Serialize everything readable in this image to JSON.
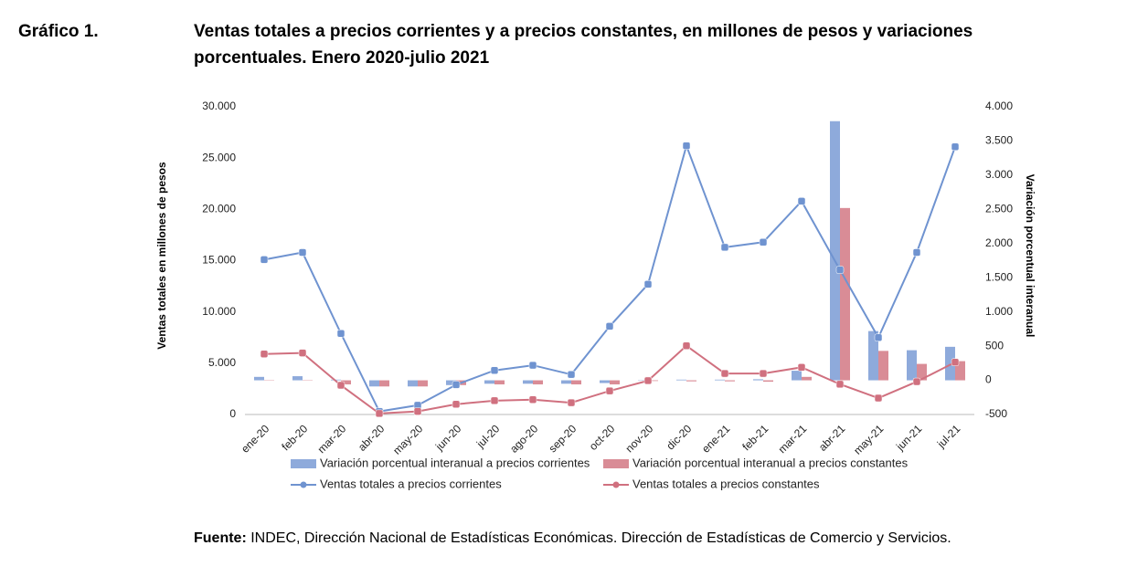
{
  "chart_data": {
    "type": "combo",
    "label": "Gráfico 1.",
    "title": "Ventas totales a precios corrientes y a precios constantes, en millones de pesos y variaciones",
    "title_line2": "porcentuales. Enero 2020-julio 2021",
    "y_label": "Ventas totales en millones de pesos",
    "y2_label": "Variación porcentual interanual",
    "categories": [
      "ene-20",
      "feb-20",
      "mar-20",
      "abr-20",
      "may-20",
      "jun-20",
      "jul-20",
      "ago-20",
      "sep-20",
      "oct-20",
      "nov-20",
      "dic-20",
      "ene-21",
      "feb-21",
      "mar-21",
      "abr-21",
      "may-21",
      "jun-21",
      "jul-21"
    ],
    "series": [
      {
        "name": "Variación porcentual interanual a precios corrientes",
        "kind": "bar",
        "axis": "y2",
        "color": "#8eaadb",
        "values": [
          50,
          60,
          10,
          -90,
          -90,
          -70,
          -50,
          -50,
          -50,
          -40,
          5,
          10,
          10,
          15,
          140,
          3790,
          720,
          440,
          490
        ]
      },
      {
        "name": "Variación porcentual interanual a precios constantes",
        "kind": "bar",
        "axis": "y2",
        "color": "#d98c96",
        "values": [
          5,
          5,
          -60,
          -90,
          -90,
          -70,
          -60,
          -60,
          -60,
          -60,
          -10,
          -15,
          -15,
          -20,
          50,
          2520,
          430,
          240,
          280
        ]
      },
      {
        "name": "Ventas totales a precios corrientes",
        "kind": "line",
        "color": "#6f93d0",
        "values": [
          15100,
          15800,
          7900,
          300,
          900,
          2900,
          4300,
          4800,
          3900,
          8600,
          12700,
          26200,
          16300,
          16800,
          20800,
          14100,
          7500,
          15800,
          26100
        ]
      },
      {
        "name": "Ventas totales a precios constantes",
        "kind": "line",
        "color": "#d0707f",
        "values": [
          5900,
          6000,
          2850,
          100,
          300,
          1000,
          1350,
          1450,
          1150,
          2300,
          3300,
          6700,
          4000,
          4000,
          4600,
          2950,
          1600,
          3200,
          5100
        ]
      }
    ],
    "ylim": [
      0,
      30000
    ],
    "yticks": [
      0,
      {
        "value": 5000,
        "label": "5.000"
      },
      {
        "value": 10000,
        "label": "10.000"
      },
      {
        "value": 15000,
        "label": "15.000"
      },
      {
        "value": 20000,
        "label": "20.000"
      },
      {
        "value": 25000,
        "label": "25.000"
      },
      {
        "value": 30000,
        "label": "30.000"
      }
    ],
    "y2lim": [
      -500,
      4000
    ],
    "y2ticks": [
      -500,
      0,
      500,
      {
        "value": 1000,
        "label": "1.000"
      },
      {
        "value": 1500,
        "label": "1.500"
      },
      {
        "value": 2000,
        "label": "2.000"
      },
      {
        "value": 2500,
        "label": "2.500"
      },
      {
        "value": 3000,
        "label": "3.000"
      },
      {
        "value": 3500,
        "label": "3.500"
      },
      {
        "value": 4000,
        "label": "4.000"
      }
    ],
    "grid": false,
    "source_label": "Fuente:",
    "source_text": "INDEC, Dirección Nacional de Estadísticas Económicas. Dirección de Estadísticas de Comercio y Servicios."
  }
}
